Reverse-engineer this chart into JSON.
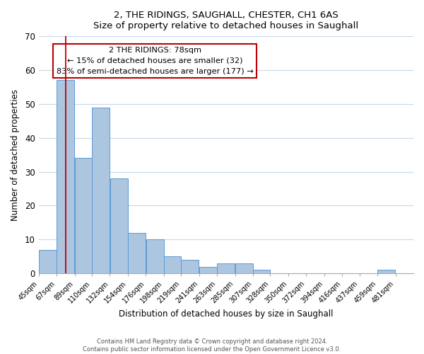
{
  "title": "2, THE RIDINGS, SAUGHALL, CHESTER, CH1 6AS",
  "subtitle": "Size of property relative to detached houses in Saughall",
  "xlabel": "Distribution of detached houses by size in Saughall",
  "ylabel": "Number of detached properties",
  "bar_left_edges": [
    45,
    67,
    89,
    110,
    132,
    154,
    176,
    198,
    219,
    241,
    263,
    285,
    307,
    328,
    350,
    372,
    394,
    416,
    437,
    459
  ],
  "bar_widths": [
    22,
    22,
    21,
    22,
    22,
    22,
    22,
    21,
    22,
    22,
    22,
    22,
    21,
    22,
    22,
    22,
    22,
    21,
    22,
    22
  ],
  "bar_heights": [
    7,
    57,
    34,
    49,
    28,
    12,
    10,
    5,
    4,
    2,
    3,
    3,
    1,
    0,
    0,
    0,
    0,
    0,
    0,
    1
  ],
  "bar_color": "#adc6e0",
  "bar_edge_color": "#5b9bd5",
  "x_tick_labels": [
    "45sqm",
    "67sqm",
    "89sqm",
    "110sqm",
    "132sqm",
    "154sqm",
    "176sqm",
    "198sqm",
    "219sqm",
    "241sqm",
    "263sqm",
    "285sqm",
    "307sqm",
    "328sqm",
    "350sqm",
    "372sqm",
    "394sqm",
    "416sqm",
    "437sqm",
    "459sqm",
    "481sqm"
  ],
  "x_tick_positions": [
    45,
    67,
    89,
    110,
    132,
    154,
    176,
    198,
    219,
    241,
    263,
    285,
    307,
    328,
    350,
    372,
    394,
    416,
    437,
    459,
    481
  ],
  "ylim": [
    0,
    70
  ],
  "yticks": [
    0,
    10,
    20,
    30,
    40,
    50,
    60,
    70
  ],
  "marker_x": 78,
  "marker_color": "#c00000",
  "annotation_title": "2 THE RIDINGS: 78sqm",
  "annotation_line1": "← 15% of detached houses are smaller (32)",
  "annotation_line2": "83% of semi-detached houses are larger (177) →",
  "annotation_box_color": "#c00000",
  "footer_line1": "Contains HM Land Registry data © Crown copyright and database right 2024.",
  "footer_line2": "Contains public sector information licensed under the Open Government Licence v3.0.",
  "background_color": "#ffffff",
  "grid_color": "#c8d8e8"
}
